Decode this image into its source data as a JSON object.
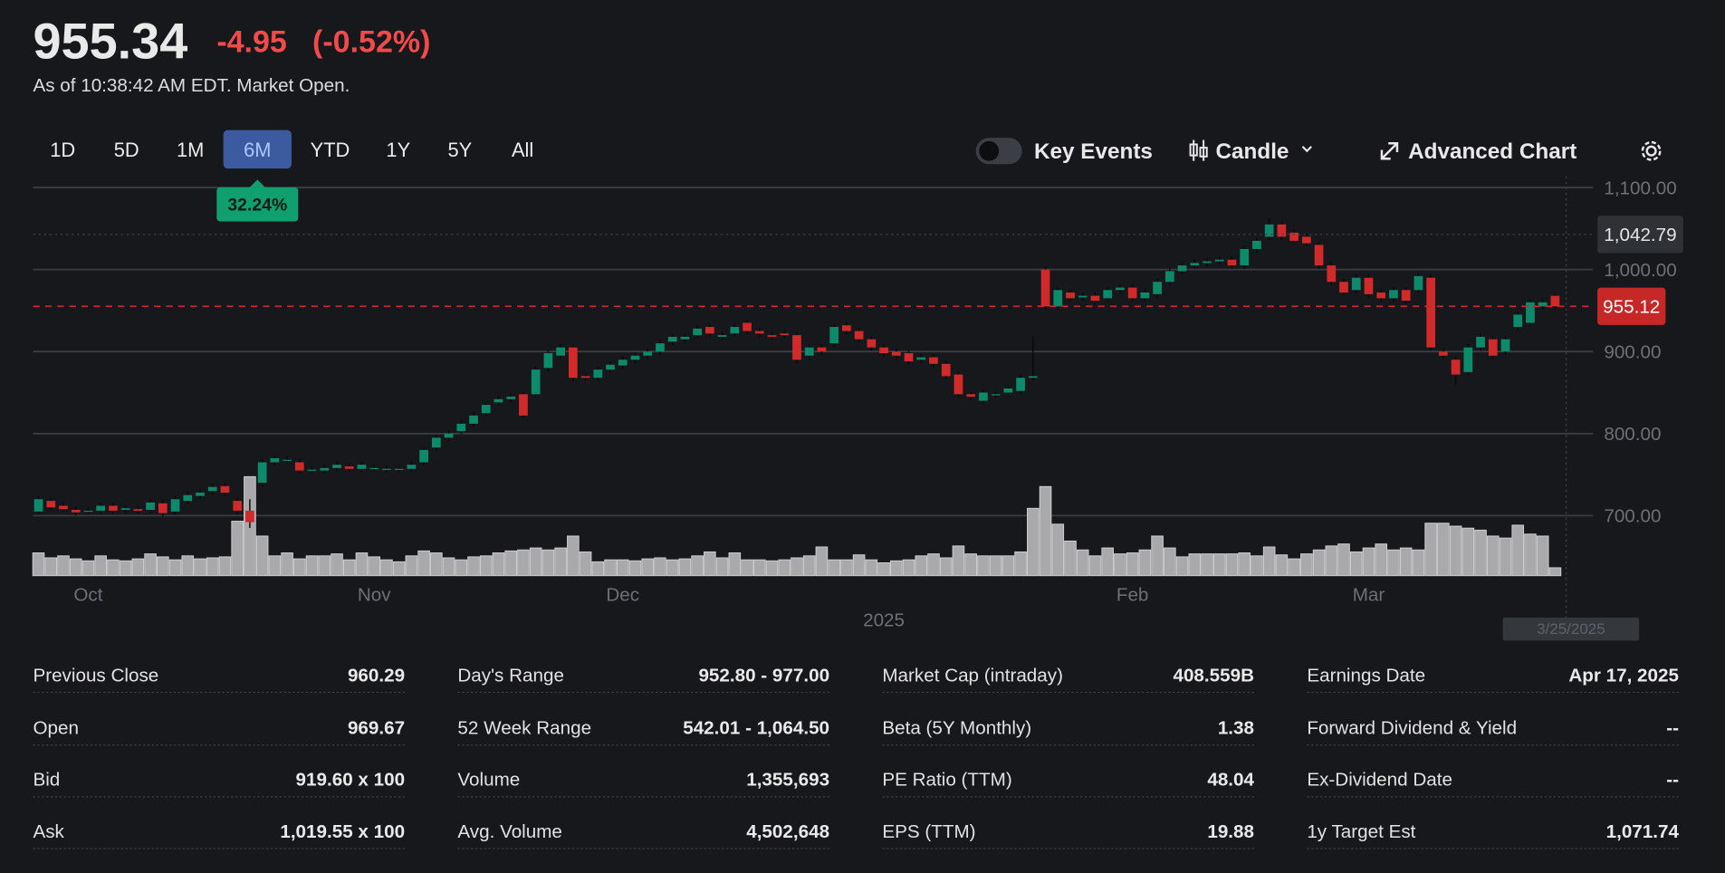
{
  "header": {
    "price": "955.34",
    "change": "-4.95",
    "change_percent": "(-0.52%)",
    "subtitle": "As of 10:38:42 AM EDT. Market Open."
  },
  "tabs": {
    "items": [
      "1D",
      "5D",
      "1M",
      "6M",
      "YTD",
      "1Y",
      "5Y",
      "All"
    ],
    "active": 3,
    "active_badge": "32.24%"
  },
  "controls": {
    "key_events": "Key Events",
    "chart_type": "Candle",
    "advanced": "Advanced Chart"
  },
  "chart_data": {
    "type": "candlestick",
    "up_color": "#0d8a6c",
    "down_color": "#d12a2a",
    "volume_color": "#a9a9ab",
    "ylim": [
      630,
      1115
    ],
    "yticks": [
      {
        "value": 700,
        "label": "700.00"
      },
      {
        "value": 800,
        "label": "800.00"
      },
      {
        "value": 900,
        "label": "900.00"
      },
      {
        "value": 1000,
        "label": "1,000.00"
      },
      {
        "value": 1100,
        "label": "1,100.00"
      }
    ],
    "grid": true,
    "categories": [
      null,
      null,
      null,
      null,
      "Oct",
      null,
      null,
      null,
      null,
      null,
      null,
      null,
      null,
      null,
      null,
      null,
      null,
      null,
      null,
      null,
      null,
      null,
      null,
      null,
      null,
      null,
      null,
      "Nov",
      null,
      null,
      null,
      null,
      null,
      null,
      null,
      null,
      null,
      null,
      null,
      null,
      null,
      null,
      null,
      null,
      null,
      null,
      null,
      "Dec",
      null,
      null,
      null,
      null,
      null,
      null,
      null,
      null,
      null,
      null,
      null,
      null,
      null,
      null,
      null,
      null,
      null,
      null,
      null,
      null,
      "2025",
      null,
      null,
      null,
      null,
      null,
      null,
      null,
      null,
      null,
      null,
      null,
      null,
      null,
      null,
      null,
      null,
      null,
      null,
      null,
      "Feb",
      null,
      null,
      null,
      null,
      null,
      null,
      null,
      null,
      null,
      null,
      null,
      null,
      null,
      null,
      null,
      null,
      null,
      null,
      "Mar",
      null,
      null,
      null,
      null,
      null,
      null,
      null,
      null,
      null,
      null,
      null,
      null,
      null,
      null,
      null
    ],
    "open": [
      705,
      718,
      712,
      707,
      705,
      706,
      712,
      707,
      708,
      707,
      715,
      705,
      718,
      724,
      730,
      736,
      718,
      706,
      740,
      765,
      768,
      765,
      756,
      755,
      758,
      760,
      757,
      758,
      757,
      756,
      757,
      765,
      783,
      795,
      803,
      812,
      825,
      838,
      842,
      848,
      848,
      880,
      895,
      905,
      870,
      868,
      878,
      883,
      890,
      895,
      900,
      912,
      915,
      920,
      930,
      918,
      922,
      935,
      925,
      920,
      922,
      920,
      895,
      905,
      910,
      932,
      925,
      915,
      905,
      900,
      898,
      890,
      893,
      885,
      872,
      848,
      840,
      848,
      850,
      852,
      868,
      1000,
      955,
      972,
      966,
      968,
      965,
      975,
      978,
      965,
      970,
      985,
      998,
      1005,
      1008,
      1010,
      1012,
      1005,
      1025,
      1040,
      1055,
      1045,
      1040,
      1030,
      1005,
      985,
      975,
      990,
      972,
      965,
      975,
      975,
      990,
      900,
      890,
      875,
      905,
      915,
      900,
      930,
      935,
      955,
      968
    ],
    "high": [
      724,
      722,
      716,
      711,
      710,
      716,
      716,
      713,
      712,
      720,
      719,
      724,
      729,
      732,
      739,
      740,
      722,
      720,
      769,
      774,
      772,
      769,
      760,
      762,
      766,
      764,
      766,
      762,
      761,
      761,
      766,
      784,
      799,
      804,
      816,
      826,
      839,
      846,
      849,
      852,
      882,
      902,
      909,
      909,
      874,
      882,
      888,
      894,
      899,
      904,
      914,
      922,
      922,
      932,
      934,
      924,
      934,
      939,
      929,
      924,
      926,
      924,
      909,
      909,
      934,
      936,
      929,
      919,
      909,
      904,
      902,
      897,
      897,
      889,
      876,
      852,
      854,
      852,
      859,
      872,
      918,
      1004,
      979,
      976,
      972,
      972,
      979,
      982,
      982,
      976,
      989,
      1002,
      1009,
      1012,
      1014,
      1016,
      1016,
      1029,
      1039,
      1062,
      1059,
      1049,
      1044,
      1034,
      1009,
      989,
      994,
      994,
      976,
      979,
      979,
      996,
      994,
      904,
      894,
      909,
      922,
      919,
      919,
      949,
      964,
      964,
      972
    ],
    "low": [
      701,
      706,
      704,
      700,
      701,
      702,
      702,
      703,
      702,
      703,
      699,
      701,
      714,
      720,
      726,
      724,
      702,
      685,
      735,
      761,
      764,
      751,
      752,
      751,
      754,
      753,
      753,
      754,
      753,
      752,
      753,
      761,
      779,
      791,
      799,
      808,
      821,
      834,
      838,
      818,
      844,
      876,
      891,
      864,
      864,
      864,
      874,
      879,
      886,
      891,
      896,
      908,
      911,
      916,
      918,
      914,
      918,
      921,
      918,
      914,
      916,
      886,
      891,
      896,
      906,
      921,
      911,
      901,
      894,
      891,
      884,
      886,
      881,
      866,
      844,
      841,
      836,
      844,
      846,
      848,
      864,
      951,
      951,
      961,
      962,
      958,
      961,
      971,
      961,
      961,
      966,
      981,
      994,
      1001,
      1004,
      1006,
      1001,
      1001,
      1021,
      1036,
      1036,
      1031,
      1028,
      1001,
      981,
      968,
      971,
      966,
      961,
      961,
      958,
      971,
      901,
      891,
      860,
      871,
      901,
      891,
      896,
      926,
      931,
      951,
      951
    ],
    "close": [
      720,
      710,
      708,
      704,
      706,
      712,
      706,
      709,
      706,
      716,
      703,
      720,
      725,
      728,
      735,
      728,
      706,
      692,
      765,
      770,
      768,
      755,
      756,
      758,
      762,
      757,
      762,
      758,
      757,
      757,
      762,
      780,
      795,
      800,
      812,
      822,
      835,
      842,
      845,
      822,
      878,
      898,
      905,
      868,
      868,
      878,
      884,
      890,
      895,
      900,
      910,
      918,
      918,
      928,
      922,
      920,
      930,
      925,
      922,
      918,
      920,
      890,
      905,
      900,
      930,
      925,
      915,
      905,
      898,
      895,
      888,
      893,
      885,
      870,
      848,
      845,
      850,
      848,
      855,
      868,
      870,
      955,
      975,
      965,
      968,
      962,
      975,
      978,
      965,
      972,
      985,
      998,
      1005,
      1008,
      1010,
      1012,
      1005,
      1025,
      1035,
      1055,
      1040,
      1035,
      1032,
      1005,
      985,
      972,
      990,
      970,
      965,
      975,
      962,
      992,
      905,
      895,
      872,
      905,
      918,
      895,
      915,
      945,
      960,
      960,
      955
    ],
    "volume": [
      2.3,
      1.8,
      2.0,
      1.7,
      1.5,
      2.0,
      1.6,
      1.5,
      1.7,
      2.2,
      1.9,
      1.6,
      2.0,
      1.7,
      1.8,
      1.9,
      5.5,
      10.0,
      4.0,
      2.0,
      2.3,
      1.7,
      2.0,
      2.0,
      2.2,
      1.6,
      2.3,
      1.9,
      1.6,
      1.4,
      2.0,
      2.5,
      2.3,
      1.8,
      1.6,
      1.9,
      2.0,
      2.3,
      2.5,
      2.6,
      2.8,
      2.6,
      2.8,
      4.0,
      2.4,
      1.4,
      1.6,
      1.6,
      1.5,
      1.7,
      1.8,
      1.6,
      1.7,
      2.0,
      2.4,
      1.8,
      2.3,
      1.6,
      1.6,
      1.5,
      1.6,
      1.8,
      2.0,
      2.9,
      1.6,
      1.6,
      2.1,
      1.6,
      1.3,
      1.5,
      1.6,
      2.0,
      2.2,
      1.8,
      3.0,
      2.2,
      2.0,
      2.0,
      2.0,
      2.4,
      6.8,
      9.0,
      5.2,
      3.5,
      2.6,
      2.0,
      2.8,
      2.2,
      2.3,
      2.6,
      4.0,
      2.8,
      1.9,
      2.2,
      2.2,
      2.2,
      2.2,
      2.3,
      2.0,
      2.9,
      2.1,
      1.7,
      2.2,
      2.6,
      3.0,
      3.2,
      2.4,
      2.8,
      3.2,
      2.6,
      2.8,
      2.6,
      5.3,
      5.3,
      5.0,
      4.8,
      4.6,
      4.0,
      3.8,
      5.1,
      4.2,
      4.0,
      0.8
    ],
    "crosshair": {
      "value": 1042.79,
      "label": "1,042.79",
      "date": "3/25/2025"
    },
    "current_price": {
      "value": 955.12,
      "label": "955.12",
      "color": "#c62828"
    }
  },
  "stats": [
    [
      {
        "label": "Previous Close",
        "value": "960.29"
      },
      {
        "label": "Open",
        "value": "969.67"
      },
      {
        "label": "Bid",
        "value": "919.60 x 100"
      },
      {
        "label": "Ask",
        "value": "1,019.55 x 100"
      }
    ],
    [
      {
        "label": "Day's Range",
        "value": "952.80 - 977.00"
      },
      {
        "label": "52 Week Range",
        "value": "542.01 - 1,064.50"
      },
      {
        "label": "Volume",
        "value": "1,355,693"
      },
      {
        "label": "Avg. Volume",
        "value": "4,502,648"
      }
    ],
    [
      {
        "label": "Market Cap (intraday)",
        "value": "408.559B"
      },
      {
        "label": "Beta (5Y Monthly)",
        "value": "1.38"
      },
      {
        "label": "PE Ratio (TTM)",
        "value": "48.04"
      },
      {
        "label": "EPS (TTM)",
        "value": "19.88"
      }
    ],
    [
      {
        "label": "Earnings Date",
        "value": "Apr 17, 2025"
      },
      {
        "label": "Forward Dividend & Yield",
        "value": "--"
      },
      {
        "label": "Ex-Dividend Date",
        "value": "--"
      },
      {
        "label": "1y Target Est",
        "value": "1,071.74"
      }
    ]
  ]
}
